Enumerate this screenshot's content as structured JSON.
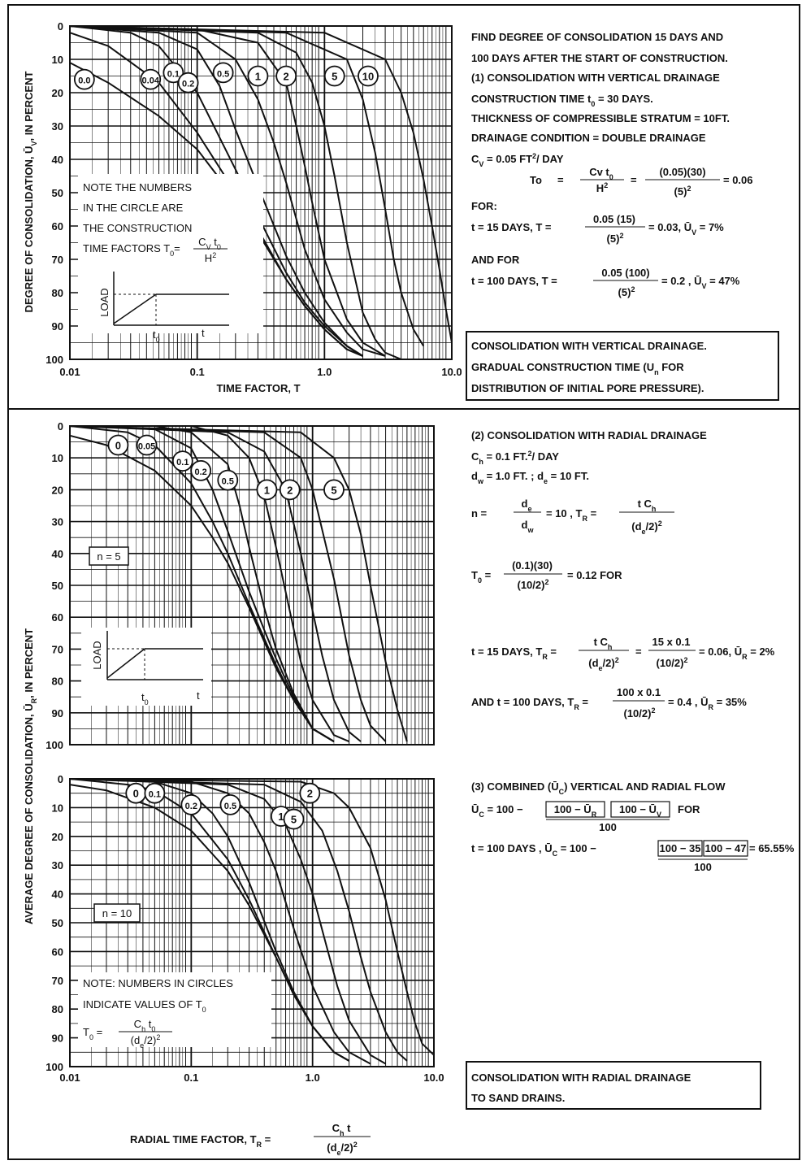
{
  "charts": {
    "top": {
      "y_axis_title": "DEGREE OF CONSOLIDATION, Ū",
      "y_axis_title_sub": "V",
      "y_axis_title_end": ", IN PERCENT",
      "x_axis_title": "TIME  FACTOR, T",
      "y_ticks": [
        "0",
        "10",
        "20",
        "30",
        "40",
        "50",
        "60",
        "70",
        "80",
        "90",
        "100"
      ],
      "x_ticks": [
        "0.01",
        "0.1",
        "1.0",
        "10.0"
      ],
      "note_lines": [
        "NOTE THE NUMBERS",
        "IN THE CIRCLE ARE",
        "THE CONSTRUCTION"
      ],
      "note_formula_prefix": "TIME  FACTORS  T",
      "note_formula_sub": "0",
      "note_formula_eq": "= ",
      "note_formula_num": "C",
      "note_formula_num_sub": "V",
      "note_formula_num_end": " t",
      "note_formula_num_end_sub": "0",
      "note_formula_den": "H",
      "note_formula_den_sup": "2",
      "load_label": "LOAD",
      "t0_label": "t",
      "t0_sub": "0",
      "t_label": "t"
    },
    "middle": {
      "y_ticks": [
        "0",
        "10",
        "20",
        "30",
        "40",
        "50",
        "60",
        "70",
        "80",
        "90",
        "100"
      ],
      "n_label": "n = 5",
      "load_label": "LOAD",
      "t0_label": "t",
      "t0_sub": "0",
      "t_label": "t"
    },
    "bottom": {
      "y_ticks": [
        "0",
        "10",
        "20",
        "30",
        "40",
        "50",
        "60",
        "70",
        "80",
        "90",
        "100"
      ],
      "x_ticks": [
        "0.01",
        "0.1",
        "1.0",
        "10.0"
      ],
      "n_label": "n = 10",
      "note_line1": "NOTE: NUMBERS IN CIRCLES",
      "note_line2": "INDICATE VALUES OF T",
      "note_line2_sub": "0",
      "note_formula_lhs": "T",
      "note_formula_lhs_sub": "0",
      "note_formula_eq": " = ",
      "note_formula_num": "C",
      "note_formula_num_sub": "h",
      "note_formula_num_end": " t",
      "note_formula_num_end_sub": "0",
      "note_formula_den": "(d",
      "note_formula_den_sub": "e",
      "note_formula_den_end": "/2)",
      "note_formula_den_sup": "2",
      "x_axis_title": "RADIAL  TIME  FACTOR, T",
      "x_axis_title_sub": "R",
      "x_axis_title_eq": " = ",
      "x_axis_title_num": "C",
      "x_axis_title_num_sub": "h",
      "x_axis_title_num_end": " t",
      "x_axis_title_den": "(d",
      "x_axis_title_den_sub": "e",
      "x_axis_title_den_end": "/2)",
      "x_axis_title_den_sup": "2"
    },
    "shared_y_title": "AVERAGE  DEGREE OF CONSOLIDATION,  Ū",
    "shared_y_title_sub": "R",
    "shared_y_title_end": ",  IN  PERCENT"
  },
  "right_panel": {
    "top": {
      "line1": "FIND DEGREE OF CONSOLIDATION 15 DAYS AND",
      "line2": "100 DAYS AFTER THE START OF CONSTRUCTION.",
      "line3": "(1) CONSOLIDATION WITH VERTICAL DRAINAGE",
      "line4a": "CONSTRUCTION  TIME  t",
      "line4sub": "0",
      "line4b": " = 30 DAYS.",
      "line5": "THICKNESS OF COMPRESSIBLE STRATUM = 10FT.",
      "line6": "DRAINAGE CONDITION = DOUBLE DRAINAGE",
      "cv_a": "C",
      "cv_sub": "V",
      "cv_b": " = 0.05 FT",
      "cv_sup": "2",
      "cv_c": "/ DAY",
      "t0_lhs": "To",
      "t0_eq": "=",
      "t0_num": "Cv t",
      "t0_num_sub": "0",
      "t0_den": "H",
      "t0_den_sup": "2",
      "t0_eq2": "=",
      "t0_num2": "(0.05)(30)",
      "t0_den2": "(5)",
      "t0_den2_sup": "2",
      "t0_res": "= 0.06",
      "for_label": "FOR:",
      "c1_lhs": "t  = 15 DAYS, T =",
      "c1_num": "0.05 (15)",
      "c1_den": "(5)",
      "c1_den_sup": "2",
      "c1_res_a": "= 0.03, Ū",
      "c1_res_sub": "V",
      "c1_res_b": " = 7%",
      "and_for": "AND FOR",
      "c2_lhs": "t  = 100 DAYS, T =",
      "c2_num": "0.05 (100)",
      "c2_den": "(5)",
      "c2_den_sup": "2",
      "c2_res_a": "= 0.2 , Ū",
      "c2_res_sub": "V",
      "c2_res_b": " = 47%",
      "box1": "CONSOLIDATION WITH VERTICAL DRAINAGE.",
      "box2_a": "GRADUAL CONSTRUCTION TIME (U",
      "box2_sub": "n",
      "box2_b": " FOR",
      "box3": "DISTRIBUTION OF INITIAL PORE PRESSURE)."
    },
    "middle": {
      "head": "(2)  CONSOLIDATION  WITH  RADIAL  DRAINAGE",
      "ch_a": "C",
      "ch_sub": "h",
      "ch_b": " = 0.1  FT.",
      "ch_sup": "2",
      "ch_c": "/ DAY",
      "dw_a": "d",
      "dw_sub": "w",
      "dw_b": " = 1.0 FT. ;  d",
      "dw_sub2": "e",
      "dw_c": " = 10 FT.",
      "n_lhs": "n  =",
      "n_num_a": "d",
      "n_num_sub": "e",
      "n_den_a": "d",
      "n_den_sub": "w",
      "n_mid_a": "= 10 , T",
      "n_mid_sub": "R",
      "n_mid_b": " =",
      "n_num2": "t  C",
      "n_num2_sub": "h",
      "n_den2": "(d",
      "n_den2_sub": "e",
      "n_den2_end": "/2)",
      "n_den2_sup": "2",
      "t0_lhs_a": "T",
      "t0_lhs_sub": "0",
      "t0_lhs_b": " =",
      "t0_num": "(0.1)(30)",
      "t0_den": "(10/2)",
      "t0_den_sup": "2",
      "t0_res": "= 0.12   FOR",
      "c1_lhs_a": "t   = 15 DAYS, T",
      "c1_lhs_sub": "R",
      "c1_lhs_b": " =",
      "c1_num": "t  C",
      "c1_num_sub": "h",
      "c1_den": "(d",
      "c1_den_sub": "e",
      "c1_den_end": "/2)",
      "c1_den_sup": "2",
      "c1_eq": "=",
      "c1_num2": "15 x 0.1",
      "c1_den2": "(10/2)",
      "c1_den2_sup": "2",
      "c1_res_a": "= 0.06, Ū",
      "c1_res_sub": "R",
      "c1_res_b": " = 2%",
      "c2_lhs_a": "AND  t = 100 DAYS, T",
      "c2_lhs_sub": "R",
      "c2_lhs_b": " =",
      "c2_num": "100 x 0.1",
      "c2_den": "(10/2)",
      "c2_den_sup": "2",
      "c2_res_a": "= 0.4 , Ū",
      "c2_res_sub": "R",
      "c2_res_b": " = 35%"
    },
    "bottom": {
      "head_a": "(3)  COMBINED  (Ū",
      "head_sub": "C",
      "head_b": ")  VERTICAL  AND RADIAL  FLOW",
      "f1_a": "Ū",
      "f1_sub": "C",
      "f1_b": " = 100 −",
      "f1_box1": "100 − Ū",
      "f1_box1_sub": "R",
      "f1_box2": "100 − Ū",
      "f1_box2_sub": "V",
      "f1_for": "FOR",
      "f1_den": "100",
      "f2_a": "t   = 100 DAYS , Ū",
      "f2_sub": "C",
      "f2_b": " = 100 −",
      "f2_box1": "100 − 35",
      "f2_box2": "100 − 47",
      "f2_res": "= 65.55%",
      "f2_den": "100",
      "box1": "CONSOLIDATION  WITH  RADIAL  DRAINAGE",
      "box2": "TO  SAND  DRAINS."
    }
  },
  "chart_data": [
    {
      "type": "line",
      "x_scale": "log",
      "xlim": [
        0.01,
        10.0
      ],
      "ylim": [
        0,
        100
      ],
      "y_inverted": true,
      "xlabel": "TIME  FACTOR, T",
      "ylabel": "DEGREE OF CONSOLIDATION, ŪV, IN PERCENT",
      "grid": true,
      "series": [
        {
          "name": "0.0",
          "x": [
            0.01,
            0.02,
            0.05,
            0.1,
            0.2,
            0.3,
            0.5,
            0.7,
            1.0,
            1.5,
            2.0
          ],
          "y": [
            11,
            17,
            27,
            37,
            52,
            62,
            76,
            84,
            91,
            97,
            99
          ]
        },
        {
          "name": "0.04",
          "x": [
            0.01,
            0.02,
            0.05,
            0.1,
            0.2,
            0.3,
            0.5,
            0.7,
            1.0,
            1.5,
            2.0
          ],
          "y": [
            2,
            6,
            17,
            32,
            50,
            61,
            76,
            84,
            91,
            97,
            99
          ]
        },
        {
          "name": "0.1",
          "x": [
            0.01,
            0.03,
            0.05,
            0.1,
            0.2,
            0.3,
            0.5,
            0.7,
            1.0,
            1.5,
            2.0
          ],
          "y": [
            0,
            2,
            6,
            20,
            43,
            57,
            74,
            83,
            90,
            96,
            99
          ]
        },
        {
          "name": "0.2",
          "x": [
            0.01,
            0.05,
            0.1,
            0.15,
            0.2,
            0.3,
            0.5,
            0.7,
            1.0,
            1.5,
            2.0
          ],
          "y": [
            0,
            2,
            7,
            18,
            31,
            48,
            69,
            80,
            89,
            96,
            99
          ]
        },
        {
          "name": "0.5",
          "x": [
            0.01,
            0.1,
            0.2,
            0.3,
            0.4,
            0.5,
            0.7,
            1.0,
            1.5,
            2.0,
            3.0
          ],
          "y": [
            0,
            2,
            10,
            22,
            35,
            47,
            67,
            82,
            92,
            97,
            99
          ]
        },
        {
          "name": "1",
          "x": [
            0.01,
            0.1,
            0.3,
            0.5,
            0.6,
            0.7,
            0.8,
            1.0,
            1.5,
            2.0,
            3.0
          ],
          "y": [
            0,
            1,
            5,
            17,
            30,
            42,
            53,
            70,
            88,
            95,
            99
          ]
        },
        {
          "name": "2",
          "x": [
            0.01,
            0.3,
            0.6,
            0.8,
            1.0,
            1.2,
            1.5,
            2.0,
            2.5,
            3.0,
            4.0
          ],
          "y": [
            0,
            2,
            8,
            17,
            30,
            45,
            65,
            86,
            94,
            98,
            100
          ]
        },
        {
          "name": "5",
          "x": [
            0.01,
            0.5,
            1.5,
            2.0,
            2.5,
            3.0,
            3.5,
            4.0,
            5.0,
            6.0
          ],
          "y": [
            0,
            2,
            10,
            22,
            38,
            55,
            70,
            80,
            91,
            96
          ]
        },
        {
          "name": "10",
          "x": [
            0.01,
            1.0,
            3.0,
            4.0,
            5.0,
            6.0,
            7.0,
            8.0,
            9.0,
            10.0
          ],
          "y": [
            0,
            2,
            10,
            20,
            32,
            46,
            60,
            73,
            85,
            95
          ]
        }
      ]
    },
    {
      "type": "line",
      "x_scale": "log",
      "xlim": [
        0.01,
        10.0
      ],
      "ylim": [
        0,
        100
      ],
      "y_inverted": true,
      "ylabel": "AVERAGE  DEGREE OF CONSOLIDATION, ŪR, IN PERCENT",
      "grid": true,
      "annotation": "n = 5",
      "series": [
        {
          "name": "0",
          "x": [
            0.01,
            0.02,
            0.05,
            0.1,
            0.15,
            0.2,
            0.3,
            0.5,
            0.7,
            1.0,
            1.5
          ],
          "y": [
            3,
            6,
            14,
            25,
            35,
            43,
            57,
            76,
            86,
            95,
            99
          ]
        },
        {
          "name": "0.05",
          "x": [
            0.01,
            0.03,
            0.05,
            0.1,
            0.15,
            0.2,
            0.3,
            0.5,
            0.7,
            1.0,
            1.5
          ],
          "y": [
            0,
            2,
            6,
            18,
            30,
            40,
            56,
            75,
            86,
            95,
            99
          ]
        },
        {
          "name": "0.1",
          "x": [
            0.01,
            0.05,
            0.1,
            0.15,
            0.2,
            0.3,
            0.4,
            0.5,
            0.7,
            1.0,
            1.5
          ],
          "y": [
            0,
            1,
            7,
            20,
            33,
            52,
            64,
            73,
            85,
            95,
            99
          ]
        },
        {
          "name": "0.2",
          "x": [
            0.01,
            0.05,
            0.1,
            0.2,
            0.25,
            0.3,
            0.4,
            0.5,
            0.7,
            1.0,
            1.5
          ],
          "y": [
            0,
            0,
            2,
            12,
            25,
            38,
            57,
            70,
            84,
            95,
            99
          ]
        },
        {
          "name": "0.5",
          "x": [
            0.01,
            0.1,
            0.2,
            0.3,
            0.4,
            0.5,
            0.6,
            0.8,
            1.0,
            1.5,
            2.0
          ],
          "y": [
            0,
            0,
            3,
            10,
            22,
            38,
            52,
            74,
            86,
            97,
            99
          ]
        },
        {
          "name": "1",
          "x": [
            0.01,
            0.2,
            0.4,
            0.6,
            0.8,
            1.0,
            1.2,
            1.5,
            2.0,
            2.5
          ],
          "y": [
            0,
            2,
            8,
            20,
            40,
            58,
            72,
            86,
            96,
            99
          ]
        },
        {
          "name": "2",
          "x": [
            0.01,
            0.4,
            0.8,
            1.0,
            1.5,
            2.0,
            2.5,
            3.0,
            4.0
          ],
          "y": [
            0,
            2,
            10,
            20,
            48,
            72,
            86,
            94,
            99
          ]
        },
        {
          "name": "5",
          "x": [
            0.01,
            0.8,
            1.5,
            2.0,
            2.5,
            3.0,
            4.0,
            5.0,
            6.0
          ],
          "y": [
            0,
            2,
            10,
            20,
            34,
            50,
            74,
            89,
            99
          ]
        }
      ]
    },
    {
      "type": "line",
      "x_scale": "log",
      "xlim": [
        0.01,
        10.0
      ],
      "ylim": [
        0,
        100
      ],
      "y_inverted": true,
      "xlabel": "RADIAL  TIME  FACTOR, TR = Ch t / (de/2)²",
      "grid": true,
      "annotation": "n = 10",
      "series": [
        {
          "name": "0",
          "x": [
            0.01,
            0.02,
            0.05,
            0.1,
            0.2,
            0.3,
            0.5,
            0.7,
            1.0,
            1.5,
            2.0
          ],
          "y": [
            2,
            4,
            10,
            18,
            32,
            44,
            62,
            75,
            86,
            95,
            98
          ]
        },
        {
          "name": "0.1",
          "x": [
            0.01,
            0.03,
            0.05,
            0.1,
            0.2,
            0.3,
            0.5,
            0.7,
            1.0,
            1.5,
            2.0
          ],
          "y": [
            0,
            2,
            4,
            12,
            28,
            42,
            62,
            75,
            86,
            95,
            98
          ]
        },
        {
          "name": "0.2",
          "x": [
            0.01,
            0.05,
            0.1,
            0.15,
            0.2,
            0.3,
            0.5,
            0.7,
            1.0,
            1.5,
            2.0
          ],
          "y": [
            0,
            1,
            5,
            12,
            20,
            36,
            60,
            74,
            86,
            95,
            98
          ]
        },
        {
          "name": "0.5",
          "x": [
            0.01,
            0.1,
            0.2,
            0.3,
            0.4,
            0.5,
            0.7,
            1.0,
            1.5,
            2.0,
            3.0
          ],
          "y": [
            0,
            1,
            5,
            12,
            22,
            32,
            52,
            72,
            88,
            95,
            99
          ]
        },
        {
          "name": "1",
          "x": [
            0.01,
            0.2,
            0.4,
            0.6,
            0.8,
            1.0,
            1.3,
            1.6,
            2.0,
            3.0,
            4.0
          ],
          "y": [
            0,
            2,
            7,
            16,
            28,
            40,
            58,
            72,
            84,
            96,
            99
          ]
        },
        {
          "name": "2",
          "x": [
            0.01,
            0.4,
            0.8,
            1.2,
            1.6,
            2.0,
            2.5,
            3.0,
            4.0,
            5.0,
            6.0
          ],
          "y": [
            0,
            2,
            8,
            18,
            32,
            46,
            62,
            74,
            88,
            95,
            98
          ]
        },
        {
          "name": "5",
          "x": [
            0.01,
            0.8,
            1.5,
            2.0,
            3.0,
            4.0,
            5.0,
            6.0,
            7.0,
            8.0,
            10.0
          ],
          "y": [
            0,
            1,
            5,
            10,
            24,
            42,
            60,
            74,
            85,
            92,
            96
          ]
        }
      ]
    }
  ]
}
